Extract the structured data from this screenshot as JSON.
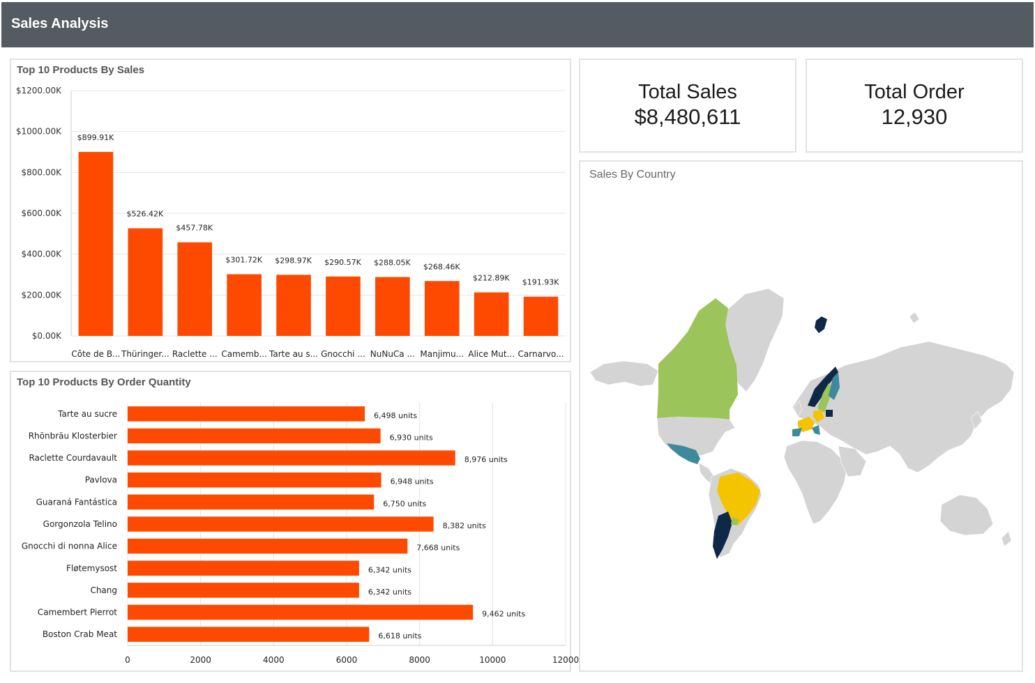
{
  "header": {
    "title": "Sales Analysis"
  },
  "kpis": {
    "total_sales": {
      "label": "Total Sales",
      "value": "$8,480,611"
    },
    "total_order": {
      "label": "Total Order",
      "value": "12,930"
    }
  },
  "map": {
    "title": "Sales By Country",
    "colors": {
      "land": "#d4d4d4",
      "green": "#9bc45a",
      "navy": "#0f2847",
      "yellow": "#f5c400",
      "teal": "#3f8a9a"
    }
  },
  "chart_data": [
    {
      "type": "bar",
      "title": "Top 10 Products By Sales",
      "categories": [
        "Côte de B...",
        "Thüringer...",
        "Raclette ...",
        "Camemb...",
        "Tarte au s...",
        "Gnocchi ...",
        "NuNuCa ...",
        "Manjimu...",
        "Alice Mut...",
        "Carnarvo..."
      ],
      "values": [
        899.91,
        526.42,
        457.78,
        301.72,
        298.97,
        290.57,
        288.05,
        268.46,
        212.89,
        191.93
      ],
      "data_labels": [
        "$899.91K",
        "$526.42K",
        "$457.78K",
        "$301.72K",
        "$298.97K",
        "$290.57K",
        "$288.05K",
        "$268.46K",
        "$212.89K",
        "$191.93K"
      ],
      "y_ticks": [
        "$0.00K",
        "$200.00K",
        "$400.00K",
        "$600.00K",
        "$800.00K",
        "$1000.00K",
        "$1200.00K"
      ],
      "ylim": [
        0,
        1200
      ],
      "unit": "thousands USD",
      "color": "#fe4a01",
      "grid": true
    },
    {
      "type": "bar",
      "orientation": "horizontal",
      "title": "Top 10 Products By Order Quantity",
      "categories": [
        "Tarte au sucre",
        "Rhönbräu Klosterbier",
        "Raclette Courdavault",
        "Pavlova",
        "Guaraná Fantástica",
        "Gorgonzola Telino",
        "Gnocchi di nonna Alice",
        "Fløtemysost",
        "Chang",
        "Camembert Pierrot",
        "Boston Crab Meat"
      ],
      "values": [
        6498,
        6930,
        8976,
        6948,
        6750,
        8382,
        7668,
        6342,
        6342,
        9462,
        6618
      ],
      "data_labels": [
        "6,498 units",
        "6,930 units",
        "8,976 units",
        "6,948 units",
        "6,750 units",
        "8,382 units",
        "7,668 units",
        "6,342 units",
        "6,342 units",
        "9,462 units",
        "6,618 units"
      ],
      "x_ticks": [
        "0",
        "2000",
        "4000",
        "6000",
        "8000",
        "10000",
        "12000"
      ],
      "xlim": [
        0,
        12000
      ],
      "color": "#fe4a01",
      "grid": true
    }
  ]
}
